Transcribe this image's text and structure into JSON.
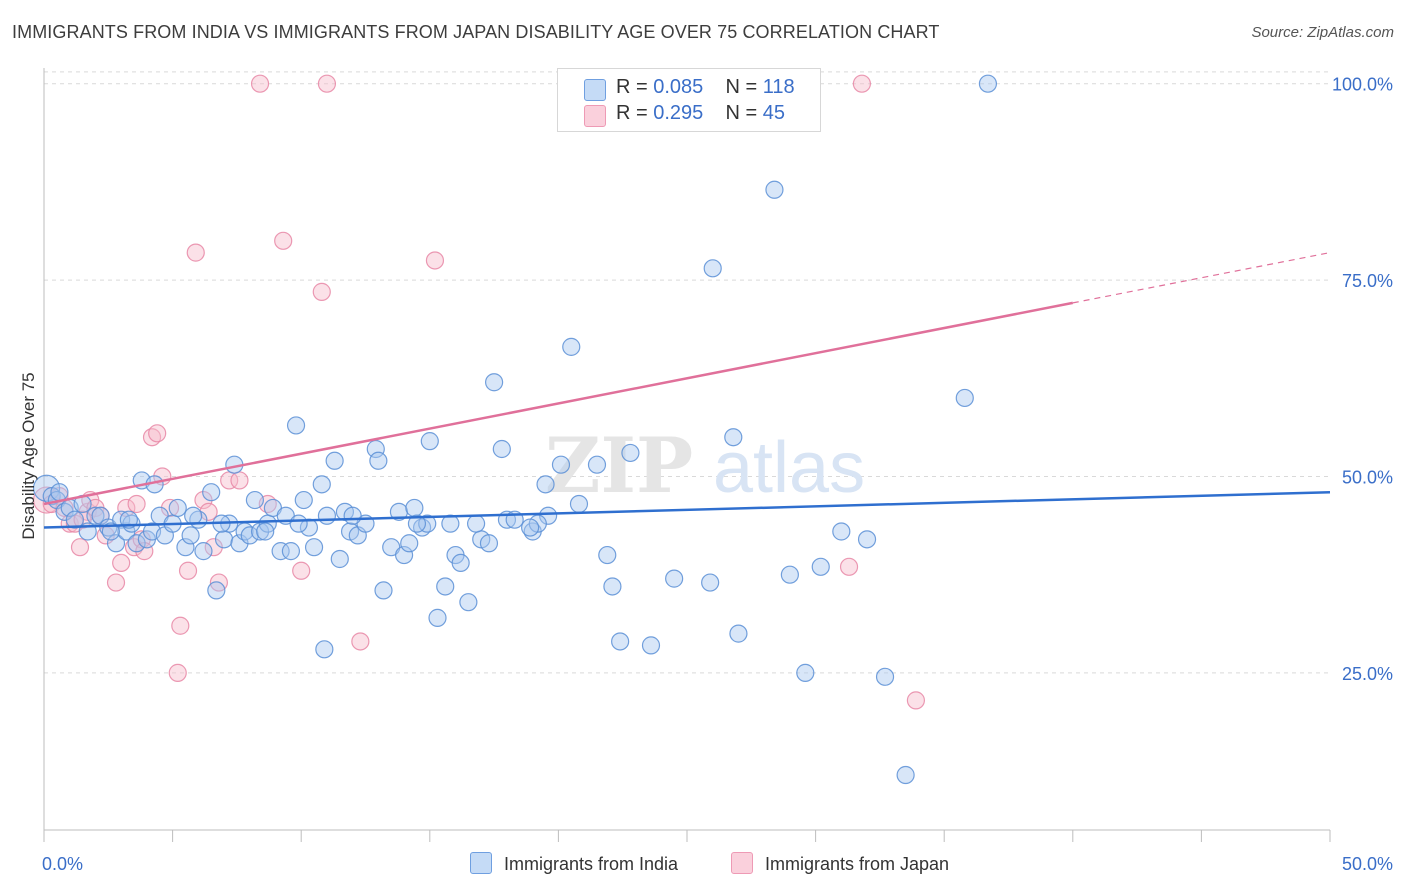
{
  "header": {
    "title": "IMMIGRANTS FROM INDIA VS IMMIGRANTS FROM JAPAN DISABILITY AGE OVER 75 CORRELATION CHART",
    "source": "Source: ZipAtlas.com"
  },
  "legend": {
    "india": {
      "r_label": "R =",
      "r_value": "0.085",
      "n_label": "N =",
      "n_value": "118"
    },
    "japan": {
      "r_label": "R =",
      "r_value": "0.295",
      "n_label": "N =",
      "n_value": "45"
    }
  },
  "watermark": {
    "zip": "ZIP",
    "atlas": "atlas"
  },
  "colors": {
    "india_fill": "#a9c8f0",
    "india_stroke": "#5b8fd6",
    "india_line": "#2f6fcf",
    "japan_fill": "#f6bccd",
    "japan_stroke": "#e887a6",
    "japan_line": "#e0709a",
    "axis_label": "#3a6ec8",
    "grid": "#d9d9d9"
  },
  "chart_data": {
    "type": "scatter",
    "title": "IMMIGRANTS FROM INDIA VS IMMIGRANTS FROM JAPAN DISABILITY AGE OVER 75 CORRELATION CHART",
    "xlabel": "",
    "ylabel": "Disability Age Over 75",
    "xlim": [
      0,
      50
    ],
    "ylim": [
      5,
      102
    ],
    "x_tick_labels": [
      "0.0%",
      "50.0%"
    ],
    "y_tick_labels": [
      "25.0%",
      "50.0%",
      "75.0%",
      "100.0%"
    ],
    "y_ticks": [
      25,
      50,
      75,
      100
    ],
    "grid": true,
    "legend_position": "top-center",
    "series": [
      {
        "name": "Immigrants from India",
        "r": 0.085,
        "n": 118,
        "trend": {
          "x": [
            0,
            50
          ],
          "y": [
            43.5,
            48.0
          ],
          "dashed_from": null
        },
        "points": [
          [
            0.1,
            48.5
          ],
          [
            0.3,
            47.5
          ],
          [
            0.5,
            47
          ],
          [
            0.6,
            48
          ],
          [
            0.8,
            45.5
          ],
          [
            1,
            46
          ],
          [
            1.2,
            44.5
          ],
          [
            1.5,
            46.5
          ],
          [
            1.7,
            43
          ],
          [
            2,
            45
          ],
          [
            2.2,
            45
          ],
          [
            2.5,
            43.5
          ],
          [
            2.8,
            41.5
          ],
          [
            3,
            44.5
          ],
          [
            3.2,
            43
          ],
          [
            3.4,
            44
          ],
          [
            3.6,
            41.5
          ],
          [
            3.8,
            49.5
          ],
          [
            4,
            42
          ],
          [
            4.2,
            43
          ],
          [
            4.3,
            49
          ],
          [
            4.5,
            45
          ],
          [
            4.7,
            42.5
          ],
          [
            5,
            44
          ],
          [
            5.2,
            46
          ],
          [
            5.5,
            41
          ],
          [
            5.7,
            42.5
          ],
          [
            6,
            44.5
          ],
          [
            6.2,
            40.5
          ],
          [
            6.5,
            48
          ],
          [
            6.7,
            35.5
          ],
          [
            7,
            42
          ],
          [
            7.2,
            44
          ],
          [
            7.4,
            51.5
          ],
          [
            7.6,
            41.5
          ],
          [
            7.8,
            43
          ],
          [
            8,
            42.5
          ],
          [
            8.2,
            47
          ],
          [
            8.4,
            43
          ],
          [
            8.7,
            44
          ],
          [
            8.9,
            46
          ],
          [
            9.2,
            40.5
          ],
          [
            9.4,
            45
          ],
          [
            9.6,
            40.5
          ],
          [
            9.8,
            56.5
          ],
          [
            10.1,
            47
          ],
          [
            10.3,
            43.5
          ],
          [
            10.5,
            41
          ],
          [
            10.8,
            49
          ],
          [
            11,
            45
          ],
          [
            11.3,
            52
          ],
          [
            11.5,
            39.5
          ],
          [
            11.7,
            45.5
          ],
          [
            11.9,
            43
          ],
          [
            12.2,
            42.5
          ],
          [
            12.5,
            44
          ],
          [
            12.9,
            53.5
          ],
          [
            13,
            52
          ],
          [
            13.2,
            35.5
          ],
          [
            13.5,
            41
          ],
          [
            13.8,
            45.5
          ],
          [
            14,
            40
          ],
          [
            14.2,
            41.5
          ],
          [
            14.4,
            46
          ],
          [
            14.7,
            43.5
          ],
          [
            14.9,
            44
          ],
          [
            15,
            54.5
          ],
          [
            15.3,
            32
          ],
          [
            15.6,
            36
          ],
          [
            16,
            40
          ],
          [
            16.2,
            39
          ],
          [
            16.5,
            34
          ],
          [
            17,
            42
          ],
          [
            17.3,
            41.5
          ],
          [
            17.5,
            62
          ],
          [
            17.8,
            53.5
          ],
          [
            18,
            44.5
          ],
          [
            18.3,
            44.5
          ],
          [
            19,
            43
          ],
          [
            19.5,
            49
          ],
          [
            19.6,
            45
          ],
          [
            20.1,
            51.5
          ],
          [
            20.5,
            66.5
          ],
          [
            20.8,
            46.5
          ],
          [
            21.5,
            51.5
          ],
          [
            21.9,
            40
          ],
          [
            22.1,
            36
          ],
          [
            22.4,
            29
          ],
          [
            22.8,
            53
          ],
          [
            23.6,
            28.5
          ],
          [
            24.5,
            37
          ],
          [
            25.9,
            36.5
          ],
          [
            26,
            76.5
          ],
          [
            26.8,
            55
          ],
          [
            27,
            30
          ],
          [
            28.4,
            86.5
          ],
          [
            29,
            37.5
          ],
          [
            29.6,
            25
          ],
          [
            30.2,
            38.5
          ],
          [
            31,
            43
          ],
          [
            32,
            42
          ],
          [
            32.7,
            24.5
          ],
          [
            33.5,
            12
          ],
          [
            35.8,
            60
          ],
          [
            36.7,
            100
          ],
          [
            10.9,
            28
          ],
          [
            5.8,
            45
          ],
          [
            8.6,
            43
          ],
          [
            16.8,
            44
          ],
          [
            19.2,
            44
          ],
          [
            2.6,
            43
          ],
          [
            12,
            45
          ],
          [
            14.5,
            44
          ],
          [
            6.9,
            44
          ],
          [
            9.9,
            44
          ],
          [
            3.3,
            44.5
          ],
          [
            15.8,
            44
          ],
          [
            18.9,
            43.5
          ]
        ]
      },
      {
        "name": "Immigrants from Japan",
        "r": 0.295,
        "n": 45,
        "trend": {
          "x": [
            0,
            50
          ],
          "y": [
            46.5,
            78.5
          ],
          "dashed_from": 40
        },
        "points": [
          [
            0.1,
            47
          ],
          [
            0.3,
            46.5
          ],
          [
            0.6,
            47.5
          ],
          [
            1,
            44
          ],
          [
            1.2,
            44
          ],
          [
            1.4,
            41
          ],
          [
            1.7,
            45.5
          ],
          [
            1.8,
            47
          ],
          [
            2,
            46
          ],
          [
            2.4,
            42.5
          ],
          [
            2.8,
            36.5
          ],
          [
            3,
            39
          ],
          [
            3.2,
            46
          ],
          [
            3.5,
            41
          ],
          [
            3.8,
            42
          ],
          [
            3.9,
            40.5
          ],
          [
            4.2,
            55
          ],
          [
            4.4,
            55.5
          ],
          [
            4.6,
            50
          ],
          [
            4.9,
            46
          ],
          [
            5.3,
            31
          ],
          [
            5.2,
            25
          ],
          [
            5.6,
            38
          ],
          [
            5.9,
            78.5
          ],
          [
            6.2,
            47
          ],
          [
            6.4,
            45.5
          ],
          [
            6.8,
            36.5
          ],
          [
            7.2,
            49.5
          ],
          [
            7.6,
            49.5
          ],
          [
            8.4,
            100
          ],
          [
            8.7,
            46.5
          ],
          [
            9.3,
            80
          ],
          [
            10,
            38
          ],
          [
            10.8,
            73.5
          ],
          [
            11,
            100
          ],
          [
            12.3,
            29
          ],
          [
            15.2,
            77.5
          ],
          [
            31.3,
            38.5
          ],
          [
            33.9,
            21.5
          ],
          [
            31.8,
            100
          ],
          [
            0.8,
            46
          ],
          [
            2.2,
            45
          ],
          [
            3.6,
            46.5
          ],
          [
            6.6,
            41
          ],
          [
            1.5,
            44.5
          ]
        ]
      }
    ]
  }
}
